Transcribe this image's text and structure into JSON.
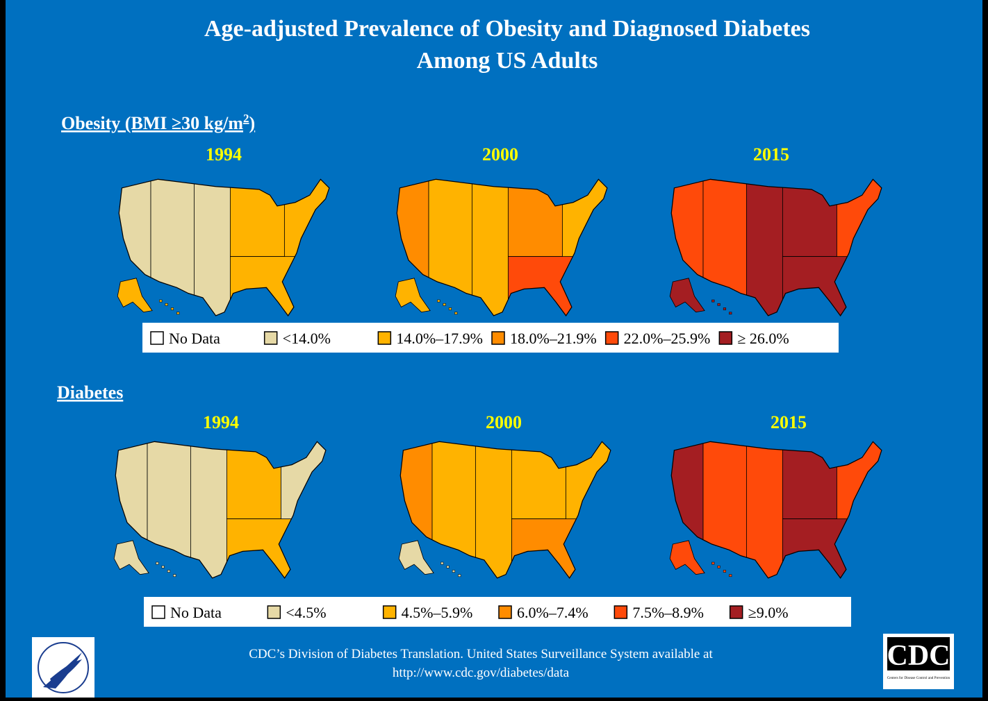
{
  "header": {
    "title_lines": [
      "Age-adjusted Prevalence of Obesity and Diagnosed Diabetes",
      "Among US Adults"
    ]
  },
  "sections": [
    {
      "heading": "Obesity (BMI ≥30 kg/m",
      "heading_sup": "2",
      "heading_end": ")",
      "years": [
        "1994",
        "2000",
        "2015"
      ],
      "legend": [
        {
          "label": "No Data",
          "color": "#ffffff"
        },
        {
          "label": "<14.0%",
          "color": "#e6d9a6"
        },
        {
          "label": "14.0%–17.9%",
          "color": "#ffb300"
        },
        {
          "label": "18.0%–21.9%",
          "color": "#ff8c00"
        },
        {
          "label": "22.0%–25.9%",
          "color": "#ff4a0a"
        },
        {
          "label": "≥ 26.0%",
          "color": "#a41e22"
        }
      ]
    },
    {
      "heading": "Diabetes",
      "years": [
        "1994",
        "2000",
        "2015"
      ],
      "legend": [
        {
          "label": "No Data",
          "color": "#ffffff"
        },
        {
          "label": "<4.5%",
          "color": "#e6d9a6"
        },
        {
          "label": "4.5%–5.9%",
          "color": "#ffb300"
        },
        {
          "label": "6.0%–7.4%",
          "color": "#ff8c00"
        },
        {
          "label": "7.5%–8.9%",
          "color": "#ff4a0a"
        },
        {
          "label": "≥9.0%",
          "color": "#a41e22"
        }
      ]
    }
  ],
  "footer": {
    "lines": [
      "CDC’s Division of Diabetes Translation. United States Surveillance System available at",
      "http://www.cdc.gov/diabetes/data"
    ]
  },
  "logos": {
    "cdc": "CDC",
    "cdc_sub": "Centers for Disease Control and Prevention"
  }
}
